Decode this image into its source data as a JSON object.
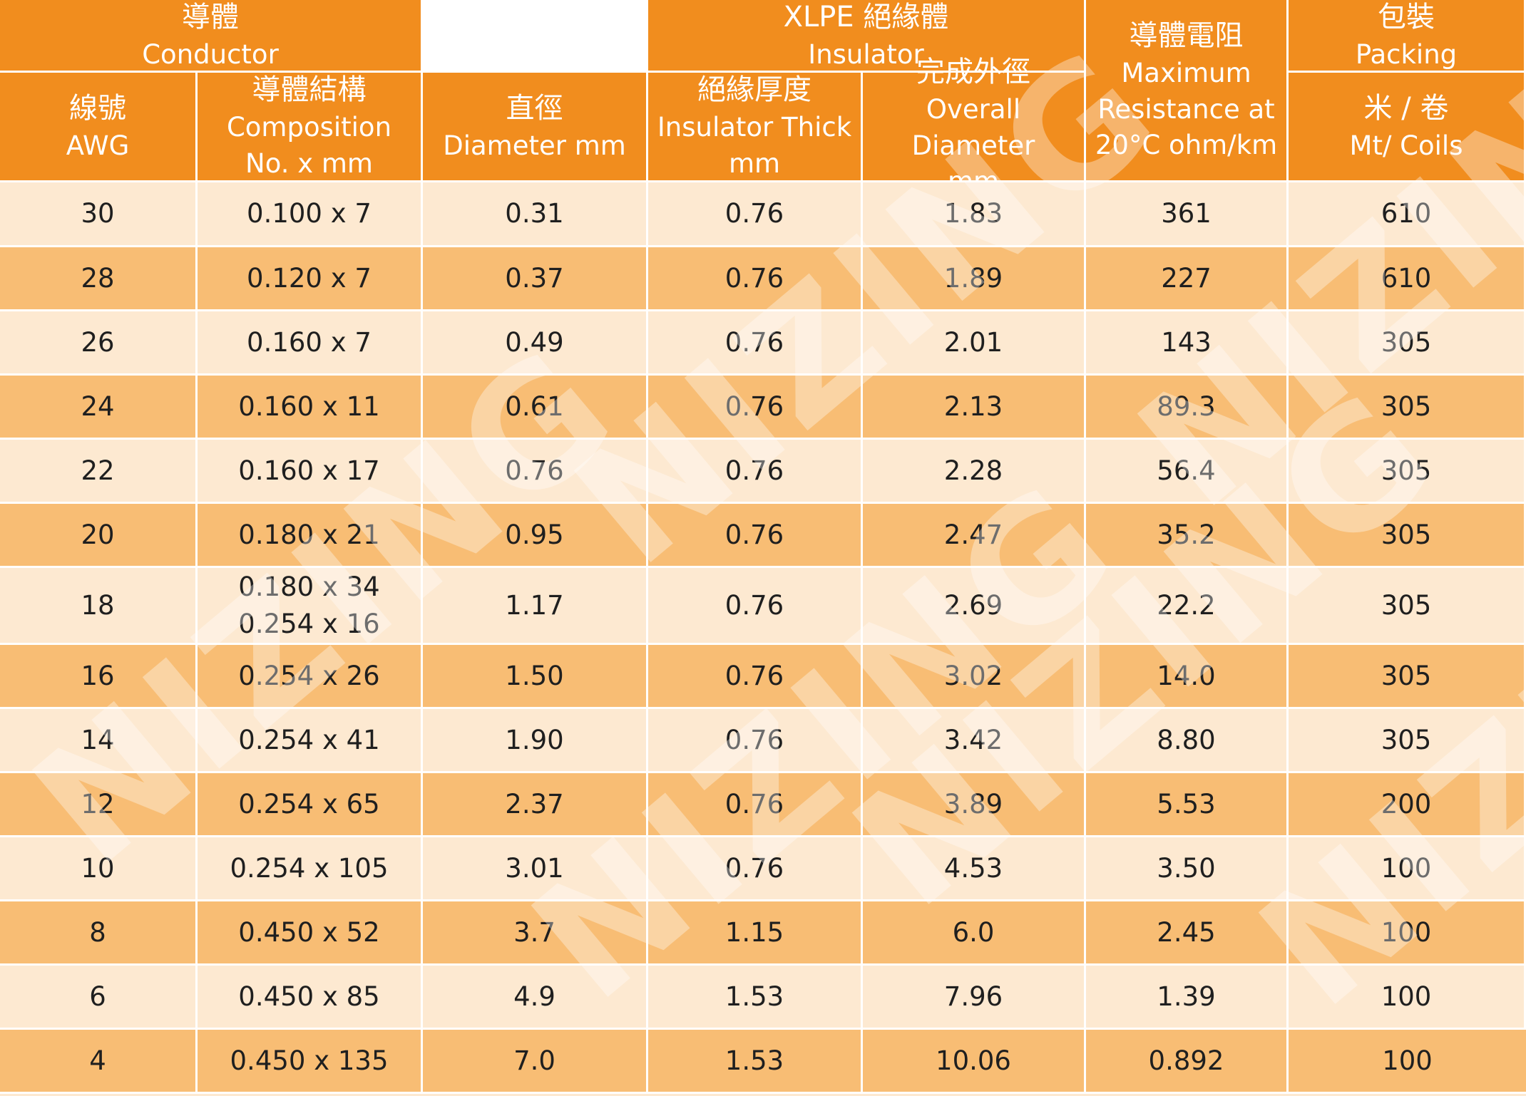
{
  "header": {
    "conductor": {
      "zh": "導體",
      "en": "Conductor"
    },
    "insulator": {
      "zh": "XLPE 絕緣體",
      "en": "Insulator"
    },
    "resistance": {
      "zh": "導體電阻",
      "en1": "Maximum",
      "en2": "Resistance at",
      "en3": "20°C ohm/km"
    },
    "packing_group": {
      "zh": "包裝",
      "en": "Packing"
    },
    "awg": {
      "zh": "線號",
      "en": "AWG"
    },
    "composition": {
      "zh": "導體結構",
      "en1": "Composition",
      "en2": "No. x mm"
    },
    "diameter": {
      "zh": "直徑",
      "en": "Diameter mm"
    },
    "thick": {
      "zh": "絕緣厚度",
      "en1": "Insulator Thick",
      "en2": "mm"
    },
    "overall": {
      "zh": "完成外徑",
      "en1": "Overall Diameter",
      "en2": "mm"
    },
    "coils": {
      "zh": "米 / 卷",
      "en": "Mt/ Coils"
    }
  },
  "rows": [
    {
      "awg": "30",
      "comp": [
        "0.100 x 7"
      ],
      "dia": "0.31",
      "thick": "0.76",
      "overall": "1.83",
      "res": "361",
      "pack": "610"
    },
    {
      "awg": "28",
      "comp": [
        "0.120 x 7"
      ],
      "dia": "0.37",
      "thick": "0.76",
      "overall": "1.89",
      "res": "227",
      "pack": "610"
    },
    {
      "awg": "26",
      "comp": [
        "0.160 x 7"
      ],
      "dia": "0.49",
      "thick": "0.76",
      "overall": "2.01",
      "res": "143",
      "pack": "305"
    },
    {
      "awg": "24",
      "comp": [
        "0.160 x 11"
      ],
      "dia": "0.61",
      "thick": "0.76",
      "overall": "2.13",
      "res": "89.3",
      "pack": "305"
    },
    {
      "awg": "22",
      "comp": [
        "0.160 x 17"
      ],
      "dia": "0.76",
      "thick": "0.76",
      "overall": "2.28",
      "res": "56.4",
      "pack": "305"
    },
    {
      "awg": "20",
      "comp": [
        "0.180 x 21"
      ],
      "dia": "0.95",
      "thick": "0.76",
      "overall": "2.47",
      "res": "35.2",
      "pack": "305"
    },
    {
      "awg": "18",
      "comp": [
        "0.180 x 34",
        "0.254 x 16"
      ],
      "dia": "1.17",
      "thick": "0.76",
      "overall": "2.69",
      "res": "22.2",
      "pack": "305"
    },
    {
      "awg": "16",
      "comp": [
        "0.254 x 26"
      ],
      "dia": "1.50",
      "thick": "0.76",
      "overall": "3.02",
      "res": "14.0",
      "pack": "305"
    },
    {
      "awg": "14",
      "comp": [
        "0.254 x 41"
      ],
      "dia": "1.90",
      "thick": "0.76",
      "overall": "3.42",
      "res": "8.80",
      "pack": "305"
    },
    {
      "awg": "12",
      "comp": [
        "0.254 x 65"
      ],
      "dia": "2.37",
      "thick": "0.76",
      "overall": "3.89",
      "res": "5.53",
      "pack": "200"
    },
    {
      "awg": "10",
      "comp": [
        "0.254 x 105"
      ],
      "dia": "3.01",
      "thick": "0.76",
      "overall": "4.53",
      "res": "3.50",
      "pack": "100"
    },
    {
      "awg": "8",
      "comp": [
        "0.450 x 52"
      ],
      "dia": "3.7",
      "thick": "1.15",
      "overall": "6.0",
      "res": "2.45",
      "pack": "100"
    },
    {
      "awg": "6",
      "comp": [
        "0.450 x 85"
      ],
      "dia": "4.9",
      "thick": "1.53",
      "overall": "7.96",
      "res": "1.39",
      "pack": "100"
    },
    {
      "awg": "4",
      "comp": [
        "0.450 x 135"
      ],
      "dia": "7.0",
      "thick": "1.53",
      "overall": "10.06",
      "res": "0.892",
      "pack": "100"
    }
  ],
  "watermark": "NIZING",
  "colors": {
    "header": "#f18d1e",
    "row_light": "#fde9d1",
    "row_dark": "#f8bd74"
  }
}
